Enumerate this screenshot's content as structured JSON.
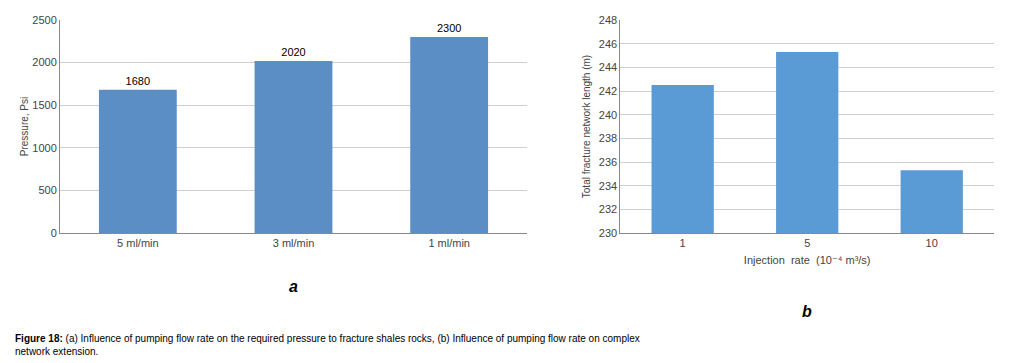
{
  "chart_data": [
    {
      "type": "bar",
      "categories": [
        "5 ml/min",
        "3 ml/min",
        "1 ml/min"
      ],
      "values": [
        1680,
        2020,
        2300
      ],
      "ylabel": "Pressure, Psi",
      "ylim": [
        0,
        2500
      ],
      "yticks": [
        0,
        500,
        1000,
        1500,
        2000,
        2500
      ],
      "color": "#5b8ec4",
      "grid": true,
      "data_labels": true,
      "annotations": [
        "a"
      ]
    },
    {
      "type": "bar",
      "categories": [
        "1",
        "5",
        "10"
      ],
      "values": [
        242.5,
        245.3,
        235.3
      ],
      "ylabel": "Total fracture network length (m)",
      "xlabel": "Injection  rate  (10⁻⁴ m³/s)",
      "ylim": [
        230,
        248
      ],
      "yticks": [
        230,
        232,
        234,
        236,
        238,
        240,
        242,
        244,
        246,
        248
      ],
      "color": "#5b9bd5",
      "grid": true,
      "data_labels": false,
      "annotations": [
        "b"
      ]
    }
  ],
  "caption": {
    "bold": "Figure 18:",
    "text": "(a) Influence of pumping flow rate on the required pressure to fracture shales rocks, (b) Influence of pumping flow rate on complex\nnetwork extension."
  }
}
